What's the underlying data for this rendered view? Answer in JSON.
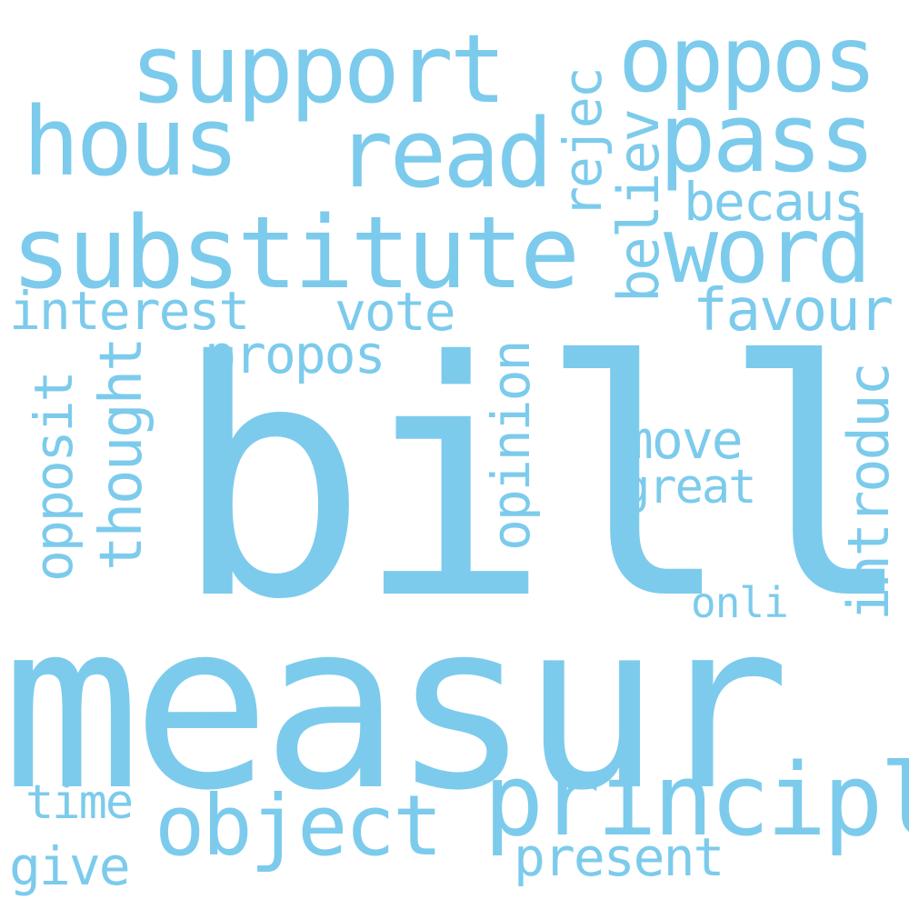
{
  "word_cloud": {
    "color": "#7ccbec",
    "background": "#ffffff",
    "words": {
      "bill": "bill",
      "measur": "measur",
      "substitute": "substitute",
      "support": "support",
      "oppos": "oppos",
      "hous": "hous",
      "read": "read",
      "pass": "pass",
      "word": "word",
      "principl": "principl",
      "object": "object",
      "becaus": "becaus",
      "interest": "interest",
      "vote": "vote",
      "favour": "favour",
      "propos": "propos",
      "move": "move",
      "great": "great",
      "onli": "onli",
      "time": "time",
      "give": "give",
      "present": "present",
      "rejec": "rejec",
      "believ": "believ",
      "opposit": "opposit",
      "thought": "thought",
      "opinion": "opinion",
      "introduc": "introduc"
    }
  }
}
